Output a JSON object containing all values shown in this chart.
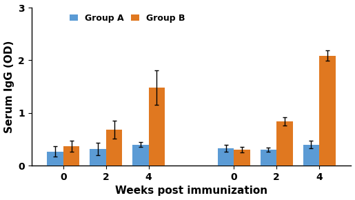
{
  "title": "",
  "xlabel": "Weeks post immunization",
  "ylabel": "Serum IgG (OD)",
  "ylim": [
    0,
    3
  ],
  "yticks": [
    0,
    1,
    2,
    3
  ],
  "group_labels": [
    "Group A",
    "Group B"
  ],
  "group_colors": [
    "#5b9bd5",
    "#e07820"
  ],
  "cluster_xtick_labels": [
    "0",
    "2",
    "4",
    "0",
    "2",
    "4"
  ],
  "cluster_positions": [
    1,
    2,
    3,
    5,
    6,
    7
  ],
  "group_A_values": [
    0.27,
    0.32,
    0.4,
    0.33,
    0.3,
    0.4
  ],
  "group_A_errors": [
    0.1,
    0.12,
    0.05,
    0.07,
    0.04,
    0.07
  ],
  "group_B_values": [
    0.37,
    0.68,
    1.48,
    0.3,
    0.84,
    2.09
  ],
  "group_B_errors": [
    0.1,
    0.17,
    0.33,
    0.05,
    0.08,
    0.1
  ],
  "bar_width": 0.38,
  "background_color": "#ffffff",
  "legend_fontsize": 9,
  "axis_label_fontsize": 11,
  "tick_fontsize": 10
}
